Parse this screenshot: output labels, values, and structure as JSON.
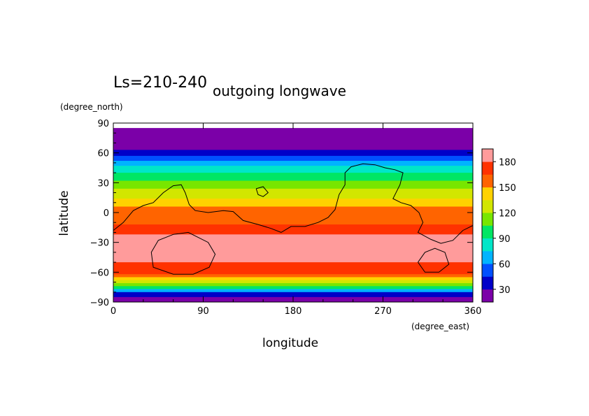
{
  "chart_data": {
    "type": "heatmap",
    "title": "outgoing longwave",
    "subtitle": "Ls=210-240",
    "xlabel": "longitude",
    "ylabel": "latitude",
    "x_unit": "(degree_east)",
    "y_unit": "(degree_north)",
    "xlim": [
      0,
      360
    ],
    "ylim": [
      -90,
      90
    ],
    "x_ticks": [
      "0",
      "90",
      "180",
      "270",
      "360"
    ],
    "y_ticks": [
      "90",
      "60",
      "30",
      "0",
      "−30",
      "−60",
      "−90"
    ],
    "colorbar": {
      "levels": [
        15,
        30,
        45,
        60,
        75,
        90,
        105,
        120,
        135,
        150,
        165,
        180,
        195
      ],
      "tick_labels": [
        "30",
        "60",
        "90",
        "120",
        "150",
        "180"
      ],
      "tick_values": [
        30,
        60,
        90,
        120,
        150,
        180
      ],
      "colors": [
        "#7b00a8",
        "#0000c8",
        "#0050ff",
        "#00b4ff",
        "#00e6c8",
        "#00e664",
        "#78e600",
        "#d2e600",
        "#ffd200",
        "#ff6400",
        "#ff3200",
        "#ff9b9b"
      ]
    },
    "bands": [
      {
        "lat_top": 85,
        "lat_bottom": 63,
        "value": 20
      },
      {
        "lat_top": 63,
        "lat_bottom": 57,
        "value": 35
      },
      {
        "lat_top": 57,
        "lat_bottom": 52,
        "value": 50
      },
      {
        "lat_top": 52,
        "lat_bottom": 47,
        "value": 65
      },
      {
        "lat_top": 47,
        "lat_bottom": 40,
        "value": 80
      },
      {
        "lat_top": 40,
        "lat_bottom": 32,
        "value": 95
      },
      {
        "lat_top": 32,
        "lat_bottom": 24,
        "value": 110
      },
      {
        "lat_top": 24,
        "lat_bottom": 14,
        "value": 125
      },
      {
        "lat_top": 14,
        "lat_bottom": 6,
        "value": 140
      },
      {
        "lat_top": 6,
        "lat_bottom": -12,
        "value": 155
      },
      {
        "lat_top": -12,
        "lat_bottom": -22,
        "value": 170
      },
      {
        "lat_top": -22,
        "lat_bottom": -50,
        "value": 190
      },
      {
        "lat_top": -50,
        "lat_bottom": -62,
        "value": 170
      },
      {
        "lat_top": -62,
        "lat_bottom": -65,
        "value": 155
      },
      {
        "lat_top": -65,
        "lat_bottom": -68,
        "value": 140
      },
      {
        "lat_top": -68,
        "lat_bottom": -71,
        "value": 125
      },
      {
        "lat_top": -71,
        "lat_bottom": -74,
        "value": 110
      },
      {
        "lat_top": -74,
        "lat_bottom": -77,
        "value": 95
      },
      {
        "lat_top": -77,
        "lat_bottom": -80,
        "value": 65
      },
      {
        "lat_top": -80,
        "lat_bottom": -85,
        "value": 35
      },
      {
        "lat_top": -85,
        "lat_bottom": -90,
        "value": 20
      }
    ],
    "topography_contours": [
      [
        [
          0,
          -18
        ],
        [
          10,
          -10
        ],
        [
          20,
          2
        ],
        [
          30,
          7
        ],
        [
          40,
          10
        ],
        [
          50,
          20
        ],
        [
          60,
          27
        ],
        [
          68,
          28
        ],
        [
          72,
          20
        ],
        [
          76,
          8
        ],
        [
          82,
          2
        ],
        [
          95,
          0
        ],
        [
          110,
          2
        ],
        [
          120,
          1
        ],
        [
          130,
          -8
        ],
        [
          145,
          -12
        ],
        [
          158,
          -16
        ],
        [
          168,
          -20
        ],
        [
          178,
          -14
        ],
        [
          192,
          -14
        ],
        [
          205,
          -10
        ],
        [
          215,
          -5
        ],
        [
          222,
          3
        ],
        [
          226,
          18
        ],
        [
          232,
          28
        ],
        [
          232,
          40
        ],
        [
          238,
          46
        ],
        [
          250,
          49
        ],
        [
          262,
          48
        ],
        [
          272,
          45
        ],
        [
          282,
          43
        ],
        [
          290,
          40
        ],
        [
          287,
          28
        ],
        [
          280,
          14
        ],
        [
          288,
          10
        ],
        [
          298,
          7
        ],
        [
          306,
          0
        ],
        [
          310,
          -10
        ],
        [
          305,
          -20
        ],
        [
          318,
          -27
        ],
        [
          328,
          -31
        ],
        [
          340,
          -28
        ],
        [
          350,
          -18
        ],
        [
          360,
          -13
        ]
      ],
      [
        [
          60,
          -22
        ],
        [
          45,
          -28
        ],
        [
          38,
          -40
        ],
        [
          40,
          -55
        ],
        [
          60,
          -62
        ],
        [
          80,
          -62
        ],
        [
          96,
          -55
        ],
        [
          102,
          -42
        ],
        [
          95,
          -30
        ],
        [
          75,
          -20
        ],
        [
          60,
          -22
        ]
      ],
      [
        [
          143,
          24
        ],
        [
          150,
          26
        ],
        [
          155,
          20
        ],
        [
          150,
          16
        ],
        [
          145,
          18
        ],
        [
          143,
          24
        ]
      ],
      [
        [
          305,
          -50
        ],
        [
          312,
          -40
        ],
        [
          322,
          -36
        ],
        [
          332,
          -40
        ],
        [
          336,
          -52
        ],
        [
          326,
          -60
        ],
        [
          312,
          -60
        ],
        [
          305,
          -50
        ]
      ]
    ]
  }
}
